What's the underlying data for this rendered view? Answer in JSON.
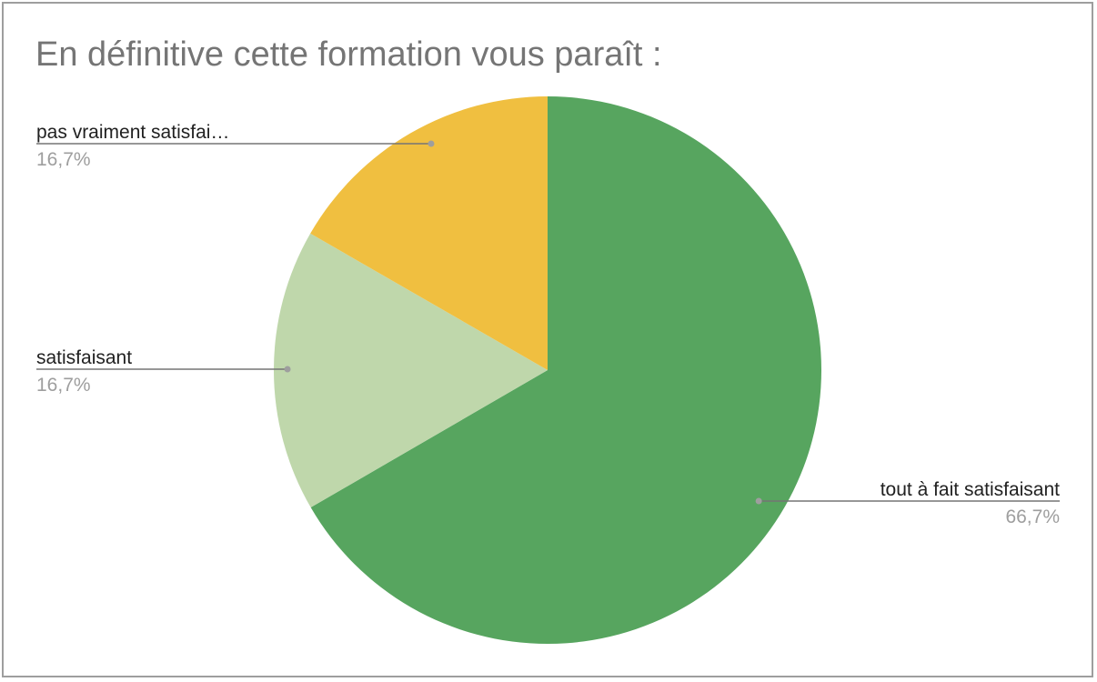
{
  "chart_data": {
    "type": "pie",
    "title": "En définitive cette formation vous paraît :",
    "slices": [
      {
        "label": "tout à fait satisfaisant",
        "percent_label": "66,7%",
        "value": 66.7,
        "color": "#57a55f"
      },
      {
        "label": "satisfaisant",
        "percent_label": "16,7%",
        "value": 16.7,
        "color": "#bfd7ab"
      },
      {
        "label": "pas vraiment satisfai…",
        "percent_label": "16,7%",
        "value": 16.7,
        "color": "#f0bf40"
      }
    ],
    "start_angle_deg": 0,
    "direction": "clockwise",
    "legend": "none",
    "labels_position": "outside-with-leader-lines",
    "colors": {
      "title": "#757575",
      "label": "#212121",
      "percent": "#9e9e9e",
      "leader": "#757575",
      "border": "#9e9e9e"
    }
  }
}
